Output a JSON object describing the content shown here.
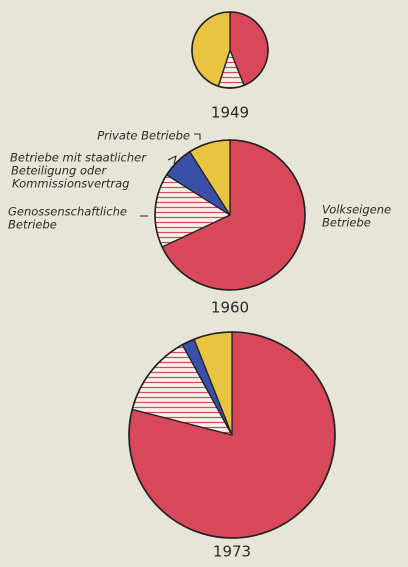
{
  "chart_data": [
    {
      "type": "pie",
      "title": "1949",
      "values": [
        44,
        11,
        0,
        45
      ],
      "colors": [
        "#d9475a",
        "#d9475a",
        "#3a4fa8",
        "#e8c440"
      ],
      "hatch": [
        false,
        true,
        false,
        false
      ]
    },
    {
      "type": "pie",
      "title": "1960",
      "categories": [
        [
          "Volkseigene",
          "Betriebe"
        ],
        [
          "Genossenschaftliche",
          "Betriebe"
        ],
        [
          "Betriebe mit staatlicher",
          "Beteiligung oder",
          "Kommissionsvertrag"
        ],
        [
          "Private Betriebe"
        ]
      ],
      "values": [
        68,
        16,
        7,
        9
      ],
      "colors": [
        "#d9475a",
        "#d9475a",
        "#3a4fa8",
        "#e8c440"
      ],
      "hatch": [
        false,
        true,
        false,
        false
      ]
    },
    {
      "type": "pie",
      "title": "1973",
      "values": [
        79,
        13,
        2,
        6
      ],
      "colors": [
        "#d9475a",
        "#d9475a",
        "#3a4fa8",
        "#e8c440"
      ],
      "hatch": [
        false,
        true,
        false,
        false
      ]
    }
  ]
}
